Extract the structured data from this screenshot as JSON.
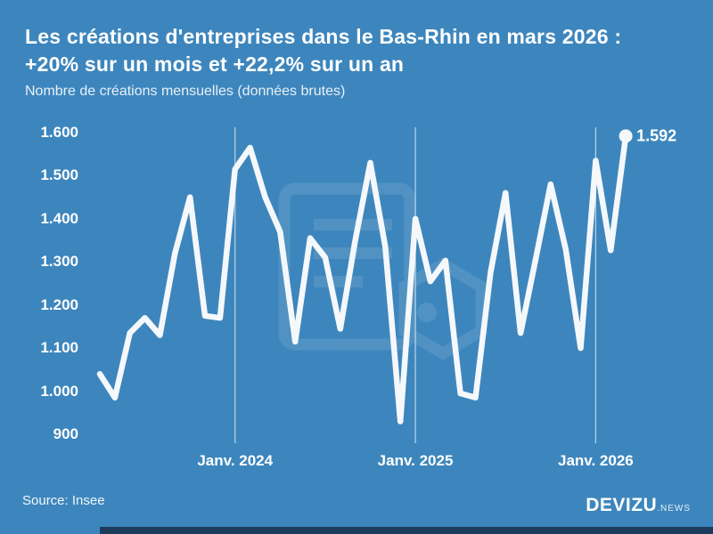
{
  "header": {
    "title_line1": "Les créations d'entreprises dans le Bas-Rhin en mars 2026 :",
    "title_line2": "+20% sur un mois et +22,2% sur un an",
    "subtitle": "Nombre de créations mensuelles (données brutes)"
  },
  "chart_data": {
    "type": "line",
    "title": "Les créations d'entreprises dans le Bas-Rhin en mars 2026 : +20% sur un mois et +22,2% sur un an",
    "subtitle": "Nombre de créations mensuelles (données brutes)",
    "x": [
      "Avr. 2023",
      "Mai 2023",
      "Juin 2023",
      "Juil. 2023",
      "Août 2023",
      "Sept. 2023",
      "Oct. 2023",
      "Nov. 2023",
      "Déc. 2023",
      "Janv. 2024",
      "Févr. 2024",
      "Mars 2024",
      "Avr. 2024",
      "Mai 2024",
      "Juin 2024",
      "Juil. 2024",
      "Août 2024",
      "Sept. 2024",
      "Oct. 2024",
      "Nov. 2024",
      "Déc. 2024",
      "Janv. 2025",
      "Févr. 2025",
      "Mars 2025",
      "Avr. 2025",
      "Mai 2025",
      "Juin 2025",
      "Juil. 2025",
      "Août 2025",
      "Sept. 2025",
      "Oct. 2025",
      "Nov. 2025",
      "Déc. 2025",
      "Janv. 2026",
      "Févr. 2026",
      "Mars 2026"
    ],
    "values": [
      1040,
      985,
      1135,
      1170,
      1130,
      1320,
      1450,
      1175,
      1170,
      1515,
      1565,
      1450,
      1370,
      1115,
      1355,
      1310,
      1145,
      1350,
      1530,
      1335,
      930,
      1400,
      1255,
      1303,
      995,
      985,
      1275,
      1460,
      1135,
      1305,
      1480,
      1330,
      1100,
      1535,
      1327,
      1592
    ],
    "ylim": [
      900,
      1600
    ],
    "grid": "vertical-only",
    "legend": "none",
    "y_ticks": [
      {
        "label": "1.600",
        "value": 1600
      },
      {
        "label": "1.500",
        "value": 1500
      },
      {
        "label": "1.400",
        "value": 1400
      },
      {
        "label": "1.300",
        "value": 1300
      },
      {
        "label": "1.200",
        "value": 1200
      },
      {
        "label": "1.100",
        "value": 1100
      },
      {
        "label": "1.000",
        "value": 1000
      },
      {
        "label": "900",
        "value": 900
      }
    ],
    "x_axis_labels": [
      {
        "label": "Janv. 2024",
        "month_index": 9
      },
      {
        "label": "Janv. 2025",
        "month_index": 21
      },
      {
        "label": "Janv. 2026",
        "month_index": 33
      }
    ],
    "end_annotation": "1.592"
  },
  "footer": {
    "source": "Source: Insee",
    "brand": "DEVIZU",
    "brand_suffix": ".NEWS"
  },
  "colors": {
    "background": "#3d86bd",
    "line": "#f5f8fb",
    "text": "#ffffff",
    "gridline": "rgba(255,255,255,0.65)",
    "watermark": "rgba(255,255,255,0.10)",
    "bottom_bar": "#1c3c5c"
  }
}
